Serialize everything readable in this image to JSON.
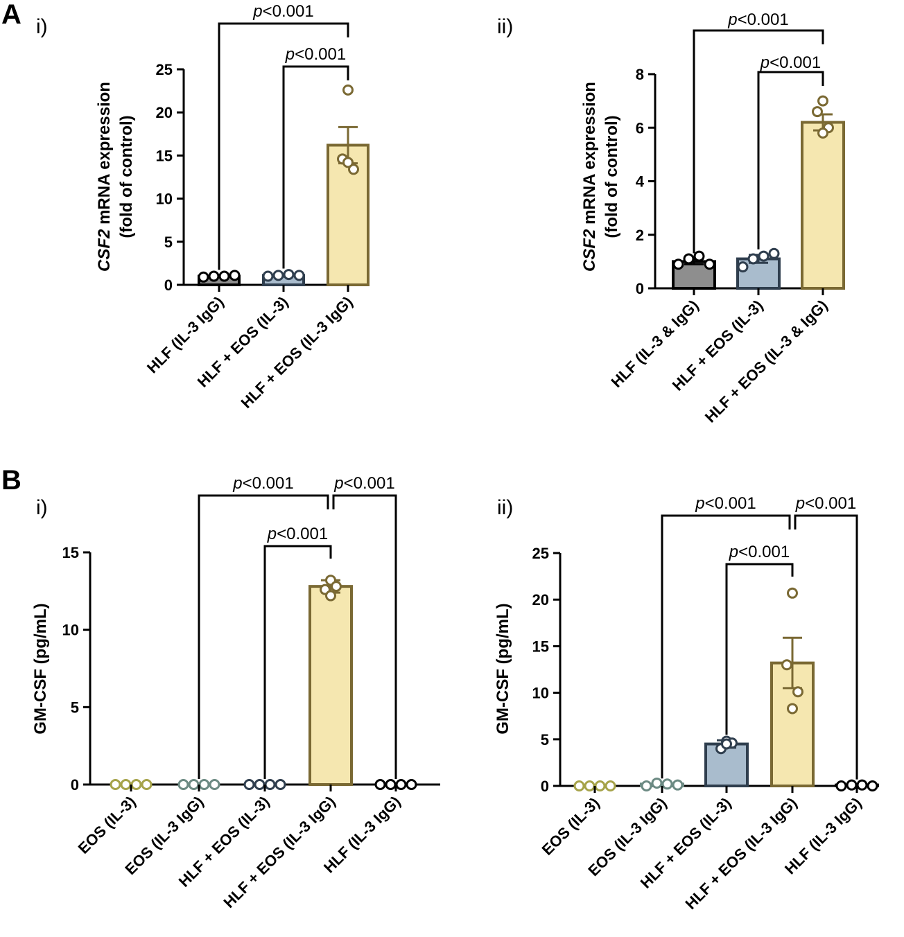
{
  "panels": [
    {
      "letter": "A"
    },
    {
      "letter": "B"
    }
  ],
  "chart_data": [
    {
      "type": "bar",
      "panel": "A",
      "subpanel": "i)",
      "ylabel_italic": "CSF2",
      "ylabel_rest": " mRNA expression",
      "ylabel_line2": "(fold of control)",
      "ylim": [
        0,
        25
      ],
      "yticks": [
        0,
        5,
        10,
        15,
        20,
        25
      ],
      "categories": [
        "HLF (IL-3 IgG)",
        "HLF + EOS (IL-3)",
        "HLF + EOS (IL-3 IgG)"
      ],
      "values": [
        1.0,
        1.1,
        16.2
      ],
      "sem": [
        0.1,
        0.15,
        2.1
      ],
      "points": [
        [
          0.9,
          1.0,
          1.0,
          1.1
        ],
        [
          1.0,
          1.1,
          1.2,
          1.1
        ],
        [
          22.6,
          14.6,
          13.4,
          14.2
        ]
      ],
      "fill_colors": [
        "#8e8e8e",
        "#a9bccd",
        "#f5e7b0"
      ],
      "edge_colors": [
        "#000000",
        "#2f3e4e",
        "#7a6933"
      ],
      "comparisons": [
        {
          "from": 0,
          "to": 2,
          "label_italic": "p",
          "label_rest": "<0.001"
        },
        {
          "from": 1,
          "to": 2,
          "label_italic": "p",
          "label_rest": "<0.001"
        }
      ]
    },
    {
      "type": "bar",
      "panel": "A",
      "subpanel": "ii)",
      "ylabel_italic": "CSF2",
      "ylabel_rest": " mRNA expression",
      "ylabel_line2": "(fold of control)",
      "ylim": [
        0,
        8
      ],
      "yticks": [
        0,
        2,
        4,
        6,
        8
      ],
      "categories": [
        "HLF (IL-3 & IgG)",
        "HLF + EOS (IL-3)",
        "HLF + EOS (IL-3 & IgG)"
      ],
      "values": [
        1.0,
        1.1,
        6.2
      ],
      "sem": [
        0.1,
        0.15,
        0.3
      ],
      "points": [
        [
          0.9,
          1.1,
          1.2,
          0.9
        ],
        [
          0.8,
          1.1,
          1.2,
          1.3
        ],
        [
          7.0,
          6.6,
          6.0,
          5.8
        ]
      ],
      "fill_colors": [
        "#8e8e8e",
        "#a9bccd",
        "#f5e7b0"
      ],
      "edge_colors": [
        "#000000",
        "#2f3e4e",
        "#7a6933"
      ],
      "comparisons": [
        {
          "from": 0,
          "to": 2,
          "label_italic": "p",
          "label_rest": "<0.001"
        },
        {
          "from": 1,
          "to": 2,
          "label_italic": "p",
          "label_rest": "<0.001"
        }
      ]
    },
    {
      "type": "bar",
      "panel": "B",
      "subpanel": "i)",
      "ylabel_italic": "",
      "ylabel_rest": "GM-CSF (pg/mL)",
      "ylabel_line2": "",
      "ylim": [
        0,
        15
      ],
      "yticks": [
        0,
        5,
        10,
        15
      ],
      "categories": [
        "EOS (IL-3)",
        "EOS (IL-3 IgG)",
        "HLF + EOS (IL-3)",
        "HLF + EOS (IL-3 IgG)",
        "HLF (IL-3 IgG)"
      ],
      "values": [
        0,
        0,
        0,
        12.8,
        0
      ],
      "sem": [
        0,
        0,
        0,
        0.4,
        0
      ],
      "points": [
        [
          0,
          0,
          0,
          0
        ],
        [
          0,
          0,
          0,
          0
        ],
        [
          0,
          0,
          0,
          0
        ],
        [
          13.2,
          12.6,
          12.8,
          12.2
        ],
        [
          0,
          0,
          0,
          0
        ]
      ],
      "fill_colors": [
        "#ffffff",
        "#ffffff",
        "#ffffff",
        "#f5e7b0",
        "#ffffff"
      ],
      "edge_colors": [
        "#a6a34a",
        "#6c8a83",
        "#2f3e4e",
        "#7a6933",
        "#000000"
      ],
      "comparisons": [
        {
          "from": 1,
          "to": 3,
          "label_italic": "p",
          "label_rest": "<0.001"
        },
        {
          "from": 2,
          "to": 3,
          "label_italic": "p",
          "label_rest": "<0.001"
        },
        {
          "from": 3,
          "to": 4,
          "label_italic": "p",
          "label_rest": "<0.001"
        }
      ]
    },
    {
      "type": "bar",
      "panel": "B",
      "subpanel": "ii)",
      "ylabel_italic": "",
      "ylabel_rest": "GM-CSF (pg/mL)",
      "ylabel_line2": "",
      "ylim": [
        0,
        25
      ],
      "yticks": [
        0,
        5,
        10,
        15,
        20,
        25
      ],
      "categories": [
        "EOS (IL-3)",
        "EOS (IL-3 IgG)",
        "HLF + EOS (IL-3)",
        "HLF + EOS (IL-3 IgG)",
        "HLF (IL-3 IgG)"
      ],
      "values": [
        0,
        0.2,
        4.5,
        13.2,
        0.1
      ],
      "sem": [
        0,
        0,
        0.4,
        2.7,
        0
      ],
      "points": [
        [
          0,
          0,
          0,
          0
        ],
        [
          0,
          0.3,
          0.2,
          0.1
        ],
        [
          4.8,
          4.0,
          4.6,
          4.5
        ],
        [
          20.7,
          13.0,
          10.1,
          8.3
        ],
        [
          0,
          0.1,
          0.1,
          0
        ]
      ],
      "fill_colors": [
        "#ffffff",
        "#ffffff",
        "#a9bccd",
        "#f5e7b0",
        "#ffffff"
      ],
      "edge_colors": [
        "#a6a34a",
        "#6c8a83",
        "#2f3e4e",
        "#7a6933",
        "#000000"
      ],
      "comparisons": [
        {
          "from": 1,
          "to": 3,
          "label_italic": "p",
          "label_rest": "<0.001"
        },
        {
          "from": 2,
          "to": 3,
          "label_italic": "p",
          "label_rest": "<0.001"
        },
        {
          "from": 3,
          "to": 4,
          "label_italic": "p",
          "label_rest": "<0.001"
        }
      ]
    }
  ]
}
